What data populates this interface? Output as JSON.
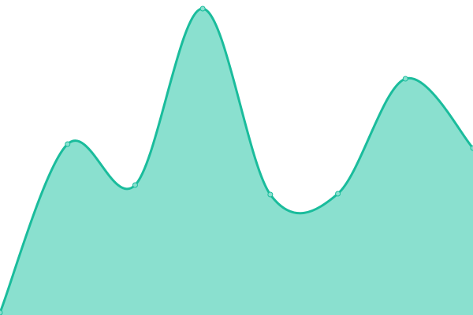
{
  "chart_data": {
    "type": "area",
    "title": "",
    "xlabel": "",
    "ylabel": "",
    "x": [
      0,
      1,
      2,
      3,
      4,
      5,
      6,
      7
    ],
    "values": [
      3,
      217,
      165,
      389,
      153,
      154,
      300,
      212
    ],
    "ylim": [
      0,
      400
    ],
    "grid": false,
    "axes_visible": false,
    "curve": "smooth",
    "colors": {
      "line": "#1abc9c",
      "fill": "#8ae0cf",
      "marker_fill": "#8ae0cf",
      "marker_stroke": "#1abc9c"
    }
  }
}
